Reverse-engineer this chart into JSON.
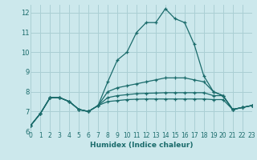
{
  "title": "",
  "xlabel": "Humidex (Indice chaleur)",
  "ylabel": "",
  "background_color": "#cce8ec",
  "grid_color": "#aacfd4",
  "line_color": "#1a6b6b",
  "marker": "+",
  "xlim": [
    0,
    23
  ],
  "ylim": [
    6,
    12.4
  ],
  "xticks": [
    0,
    1,
    2,
    3,
    4,
    5,
    6,
    7,
    8,
    9,
    10,
    11,
    12,
    13,
    14,
    15,
    16,
    17,
    18,
    19,
    20,
    21,
    22,
    23
  ],
  "yticks": [
    6,
    7,
    8,
    9,
    10,
    11,
    12
  ],
  "lines": [
    [
      6.3,
      6.9,
      7.7,
      7.7,
      7.5,
      7.1,
      7.0,
      7.3,
      8.5,
      9.6,
      10.0,
      11.0,
      11.5,
      11.5,
      12.2,
      11.7,
      11.5,
      10.4,
      8.8,
      8.0,
      7.8,
      7.1,
      7.2,
      7.3
    ],
    [
      6.3,
      6.9,
      7.7,
      7.7,
      7.5,
      7.1,
      7.0,
      7.3,
      8.0,
      8.2,
      8.3,
      8.4,
      8.5,
      8.6,
      8.7,
      8.7,
      8.7,
      8.6,
      8.5,
      8.0,
      7.8,
      7.1,
      7.2,
      7.3
    ],
    [
      6.3,
      6.9,
      7.7,
      7.7,
      7.5,
      7.1,
      7.0,
      7.3,
      7.7,
      7.8,
      7.85,
      7.9,
      7.92,
      7.93,
      7.95,
      7.95,
      7.95,
      7.95,
      7.95,
      7.8,
      7.8,
      7.1,
      7.2,
      7.3
    ],
    [
      6.3,
      6.9,
      7.7,
      7.7,
      7.5,
      7.1,
      7.0,
      7.3,
      7.5,
      7.55,
      7.6,
      7.62,
      7.63,
      7.63,
      7.63,
      7.63,
      7.63,
      7.63,
      7.63,
      7.6,
      7.6,
      7.1,
      7.2,
      7.3
    ]
  ]
}
